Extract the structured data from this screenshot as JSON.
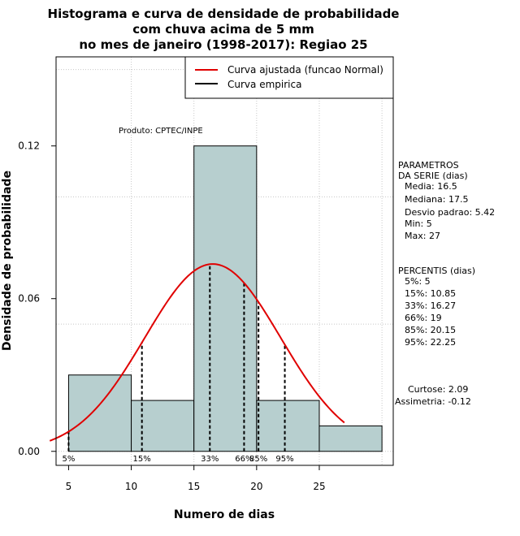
{
  "chart_data": {
    "type": "histogram",
    "title_lines": [
      "Histograma e curva de densidade de probabilidade",
      "com chuva acima de 5 mm",
      "no mes de janeiro (1998-2017): Regiao 25"
    ],
    "xlabel": "Numero de dias",
    "ylabel": "Densidade de probabilidade",
    "xlim": [
      4,
      30.9
    ],
    "ylim": [
      -0.0055,
      0.155
    ],
    "xticks": [
      5,
      10,
      15,
      20,
      25
    ],
    "yticks": [
      0.0,
      0.06,
      0.12
    ],
    "ytick_labels": [
      "0.00",
      "0.06",
      "0.12"
    ],
    "grid": true,
    "bin_edges": [
      5,
      10,
      15,
      20,
      25,
      30
    ],
    "densities": [
      0.03,
      0.02,
      0.12,
      0.02,
      0.01
    ],
    "bar_color": "#b7cfcf",
    "normal_curve": {
      "name": "Curva ajustada (funcao Normal)",
      "mean": 16.5,
      "sd": 5.42,
      "x_start": 3.5,
      "x_end": 27,
      "color": "#e00000"
    },
    "empirical_curve": {
      "name": "Curva empirica",
      "color": "#000000"
    },
    "percentile_lines": [
      {
        "label": "5%",
        "x": 5
      },
      {
        "label": "15%",
        "x": 10.85
      },
      {
        "label": "33%",
        "x": 16.27
      },
      {
        "label": "66%",
        "x": 19
      },
      {
        "label": "85%",
        "x": 20.15
      },
      {
        "label": "95%",
        "x": 22.25
      }
    ],
    "annotation": "Produto: CPTEC/INPE",
    "legend_position": "top-right",
    "parametros": {
      "header1": "PARAMETROS",
      "header2": "DA SERIE (dias)",
      "lines": [
        "Media: 16.5",
        "Mediana: 17.5",
        "Desvio padrao: 5.42",
        "Min: 5",
        "Max: 27"
      ]
    },
    "percentis": {
      "header": "PERCENTIS (dias)",
      "lines": [
        "5%: 5",
        "15%: 10.85",
        "33%: 16.27",
        "66%: 19",
        "85%: 20.15",
        "95%: 22.25"
      ]
    },
    "curtose": "Curtose: 2.09",
    "assimetria": "Assimetria: -0.12"
  }
}
